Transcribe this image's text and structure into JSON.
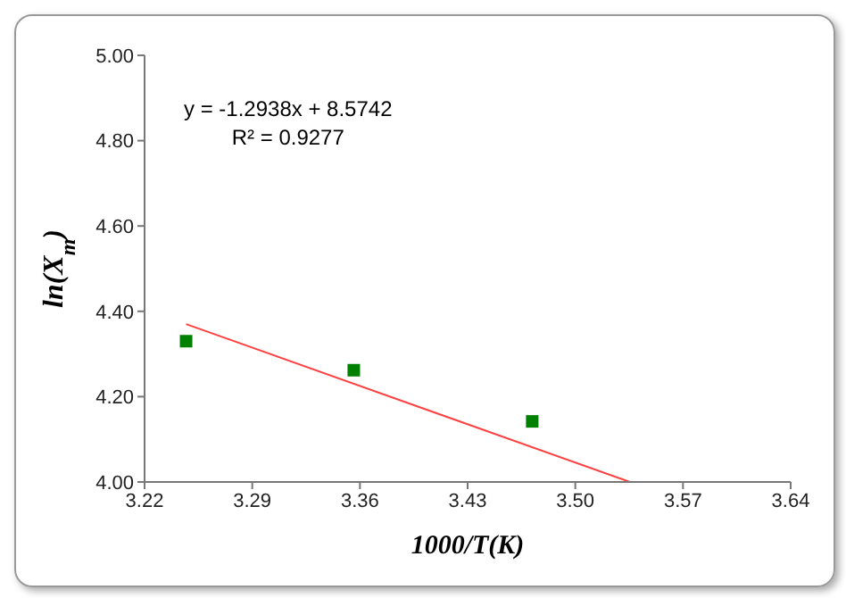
{
  "chart_data": {
    "type": "scatter",
    "xlabel": "1000/T(K)",
    "ylabel": "ln(X$_{m}$)",
    "xlim": [
      3.22,
      3.64
    ],
    "xticks": [
      {
        "value": 3.22,
        "label": "3.22"
      },
      {
        "value": 3.29,
        "label": "3.29"
      },
      {
        "value": 3.36,
        "label": "3.36"
      },
      {
        "value": 3.43,
        "label": "3.43"
      },
      {
        "value": 3.5,
        "label": "3.50"
      },
      {
        "value": 3.57,
        "label": "3.57"
      },
      {
        "value": 3.64,
        "label": "3.64"
      }
    ],
    "ylim": [
      4,
      5
    ],
    "yticks": [
      {
        "value": 4,
        "label": "4.00"
      },
      {
        "value": 4.2,
        "label": "4.20"
      },
      {
        "value": 4.4,
        "label": "4.40"
      },
      {
        "value": 4.6,
        "label": "4.60"
      },
      {
        "value": 4.8,
        "label": "4.80"
      },
      {
        "value": 5,
        "label": "5.00"
      }
    ],
    "grid": false,
    "legend": false,
    "series": [
      {
        "type": "scatter",
        "color": "#008000",
        "marker": "square",
        "x": [
          3.247,
          3.356,
          3.472
        ],
        "values": [
          4.33,
          4.262,
          4.142
        ]
      },
      {
        "type": "line",
        "color": "#ff4040",
        "marker": "none",
        "line_style": "solid",
        "x": [
          3.247,
          3.5355
        ],
        "values": [
          4.37,
          4.0
        ]
      }
    ],
    "annotations": [
      "y = -1.2938x + 8.5742",
      "R² = 0.9277"
    ]
  }
}
